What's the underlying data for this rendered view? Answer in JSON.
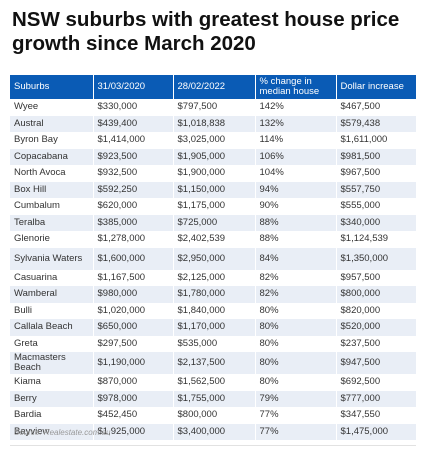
{
  "title": "NSW suburbs with greatest house price growth since March 2020",
  "table": {
    "headers": [
      "Suburbs",
      "31/03/2020",
      "28/02/2022",
      "% change in median house",
      "Dollar increase"
    ],
    "rows": [
      [
        "Wyee",
        "$330,000",
        "$797,500",
        "142%",
        "$467,500"
      ],
      [
        "Austral",
        "$439,400",
        "$1,018,838",
        "132%",
        "$579,438"
      ],
      [
        "Byron Bay",
        "$1,414,000",
        "$3,025,000",
        "114%",
        "$1,611,000"
      ],
      [
        "Copacabana",
        "$923,500",
        "$1,905,000",
        "106%",
        "$981,500"
      ],
      [
        "North Avoca",
        "$932,500",
        "$1,900,000",
        "104%",
        "$967,500"
      ],
      [
        "Box Hill",
        "$592,250",
        "$1,150,000",
        "94%",
        "$557,750"
      ],
      [
        "Cumbalum",
        "$620,000",
        "$1,175,000",
        "90%",
        "$555,000"
      ],
      [
        "Teralba",
        "$385,000",
        "$725,000",
        "88%",
        "$340,000"
      ],
      [
        "Glenorie",
        "$1,278,000",
        "$2,402,539",
        "88%",
        "$1,124,539"
      ],
      [
        "Sylvania Waters",
        "$1,600,000",
        "$2,950,000",
        "84%",
        "$1,350,000"
      ],
      [
        "Casuarina",
        "$1,167,500",
        "$2,125,000",
        "82%",
        "$957,500"
      ],
      [
        "Wamberal",
        "$980,000",
        "$1,780,000",
        "82%",
        "$800,000"
      ],
      [
        "Bulli",
        "$1,020,000",
        "$1,840,000",
        "80%",
        "$820,000"
      ],
      [
        "Callala Beach",
        "$650,000",
        "$1,170,000",
        "80%",
        "$520,000"
      ],
      [
        "Greta",
        "$297,500",
        "$535,000",
        "80%",
        "$237,500"
      ],
      [
        "Macmasters Beach",
        "$1,190,000",
        "$2,137,500",
        "80%",
        "$947,500"
      ],
      [
        "Kiama",
        "$870,000",
        "$1,562,500",
        "80%",
        "$692,500"
      ],
      [
        "Berry",
        "$978,000",
        "$1,755,000",
        "79%",
        "$777,000"
      ],
      [
        "Bardia",
        "$452,450",
        "$800,000",
        "77%",
        "$347,550"
      ],
      [
        "Bayview",
        "$1,925,000",
        "$3,400,000",
        "77%",
        "$1,475,000"
      ]
    ]
  },
  "source": "Source: Realestate.com.au",
  "colors": {
    "header_bg": "#0a5bb5",
    "header_text": "#ffffff",
    "stripe": "#e9eef6"
  }
}
